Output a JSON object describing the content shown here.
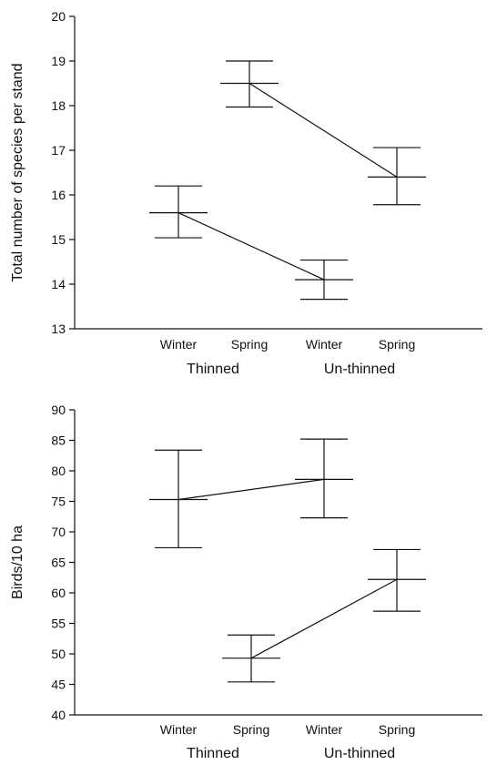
{
  "chart_data": [
    {
      "type": "line",
      "ylabel": "Total number of species per stand",
      "xlabel": "",
      "ylim": [
        13,
        20
      ],
      "yticks": [
        13,
        14,
        15,
        16,
        17,
        18,
        19,
        20
      ],
      "categories": [
        "Winter",
        "Spring",
        "Winter",
        "Spring"
      ],
      "groups": [
        {
          "label": "Thinned",
          "span": [
            0,
            1
          ]
        },
        {
          "label": "Un-thinned",
          "span": [
            2,
            3
          ]
        }
      ],
      "series": [
        {
          "values": [
            15.6,
            14.1
          ],
          "errors": [
            [
              15.04,
              16.2
            ],
            [
              13.66,
              14.54
            ]
          ],
          "x": [
            0,
            2
          ]
        },
        {
          "values": [
            18.5,
            16.4
          ],
          "errors": [
            [
              17.97,
              19.0
            ],
            [
              15.78,
              17.06
            ]
          ],
          "x": [
            1,
            3
          ]
        }
      ],
      "grid": false
    },
    {
      "type": "line",
      "ylabel": "Birds/10 ha",
      "xlabel": "",
      "ylim": [
        40,
        90
      ],
      "yticks": [
        40,
        45,
        50,
        55,
        60,
        65,
        70,
        75,
        80,
        85,
        90
      ],
      "categories": [
        "Winter",
        "Spring",
        "Winter",
        "Spring"
      ],
      "groups": [
        {
          "label": "Thinned",
          "span": [
            0,
            1
          ]
        },
        {
          "label": "Un-thinned",
          "span": [
            2,
            3
          ]
        }
      ],
      "series": [
        {
          "values": [
            75.3,
            78.6
          ],
          "errors": [
            [
              67.4,
              83.4
            ],
            [
              72.3,
              85.2
            ]
          ],
          "x": [
            0,
            2
          ]
        },
        {
          "values": [
            49.3,
            62.2
          ],
          "errors": [
            [
              45.4,
              53.1
            ],
            [
              57.0,
              67.1
            ]
          ],
          "x": [
            1,
            3
          ]
        }
      ],
      "grid": false
    }
  ]
}
